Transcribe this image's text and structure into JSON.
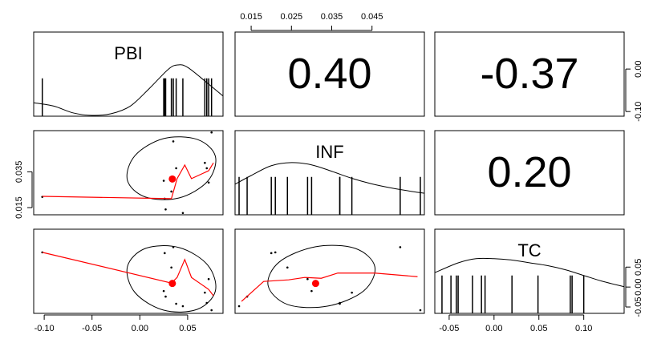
{
  "chart_data": {
    "type": "scatter-matrix",
    "variables": [
      {
        "name": "PBI",
        "lim": [
          -0.111,
          0.087
        ],
        "xticks": [
          {
            "value": -0.1,
            "label": "-0.10"
          },
          {
            "value": -0.05,
            "label": "-0.05"
          },
          {
            "value": 0,
            "label": "0.00"
          },
          {
            "value": 0.05,
            "label": "0.05"
          }
        ],
        "yticks": [
          {
            "value": -0.1,
            "label": "-0.10"
          },
          {
            "value": 0,
            "label": "0.00"
          }
        ],
        "values": [
          -0.102,
          0.035,
          0.033,
          0.025,
          0.027,
          0.038,
          0.07,
          0.075,
          0.068,
          0.026,
          0.045,
          0.072
        ],
        "mean": 0.034,
        "density": {
          "x": [
            -0.111,
            -0.09,
            -0.07,
            -0.05,
            -0.03,
            -0.01,
            0.01,
            0.03,
            0.04,
            0.05,
            0.07,
            0.087
          ],
          "y": [
            1.6,
            1.2,
            0.4,
            0.1,
            0.3,
            1.2,
            3.3,
            5.6,
            6.1,
            5.8,
            4.0,
            2.4
          ],
          "ylim": [
            0,
            10
          ]
        }
      },
      {
        "name": "INF",
        "lim": [
          0.011,
          0.058
        ],
        "xticks": [
          0.015,
          0.025,
          0.035,
          0.045
        ],
        "yticks": [
          0.015,
          0.035
        ],
        "values": [
          0.021,
          0.052,
          0.024,
          0.03,
          0.014,
          0.037,
          0.037,
          0.057,
          0.04,
          0.02,
          0.012,
          0.029
        ],
        "mean": 0.031,
        "density": {
          "x": [
            0.011,
            0.015,
            0.02,
            0.025,
            0.03,
            0.035,
            0.04,
            0.045,
            0.05,
            0.055,
            0.058
          ],
          "y": [
            10.9,
            14,
            17.5,
            18.6,
            17.8,
            15.5,
            13,
            11,
            9.5,
            8.3,
            7.7
          ],
          "ylim": [
            0,
            30
          ]
        }
      },
      {
        "name": "TC",
        "lim": [
          -0.066,
          0.145
        ],
        "xticks": [
          -0.05,
          {
            "value": 0,
            "label": "0.00"
          },
          0.05,
          {
            "value": 0.1,
            "label": "0.10"
          }
        ],
        "yticks": [
          -0.05,
          {
            "value": 0,
            "label": "0.00"
          },
          0.05
        ],
        "values": [
          0.087,
          0.1,
          0.049,
          -0.01,
          -0.024,
          -0.042,
          -0.04,
          -0.058,
          -0.014,
          0.085,
          -0.048,
          0.02
        ],
        "mean": 0.009,
        "density": {
          "x": [
            -0.066,
            -0.04,
            -0.02,
            0.0,
            0.02,
            0.04,
            0.06,
            0.08,
            0.1,
            0.12,
            0.145
          ],
          "y": [
            2.9,
            3.6,
            3.9,
            3.9,
            3.8,
            3.6,
            3.4,
            3.1,
            2.7,
            2.3,
            1.9
          ],
          "ylim": [
            0,
            6
          ]
        }
      }
    ],
    "correlations": {
      "values": [
        0.4,
        -0.37,
        0.2
      ],
      "value_labels": [
        "0.40",
        "-0.37",
        "0.20"
      ]
    },
    "smooths": [
      {
        "x": [
          -0.102,
          0.033,
          0.039,
          0.047,
          0.054,
          0.072,
          0.077
        ],
        "y": [
          0.0213,
          0.02,
          0.0312,
          0.0388,
          0.0312,
          0.0356,
          0.04
        ]
      },
      {
        "x": [
          -0.102,
          0.033,
          0.039,
          0.047,
          0.054,
          0.072,
          0.077
        ],
        "y": [
          0.087,
          0.01,
          0.024,
          0.069,
          0.024,
          -0.006,
          -0.022
        ]
      },
      {
        "x": [
          0.0126,
          0.0181,
          0.0243,
          0.0283,
          0.0324,
          0.0365,
          0.0457,
          0.0563
        ],
        "y": [
          -0.036,
          0.014,
          0.018,
          0.024,
          0.022,
          0.035,
          0.035,
          0.026
        ]
      }
    ],
    "ellipses": [
      {
        "x": [
          0.079,
          0.071,
          0.041,
          0.006,
          -0.013,
          -0.005,
          0.025,
          0.06
        ],
        "y": [
          0.0437,
          0.0298,
          0.0204,
          0.0209,
          0.0303,
          0.0441,
          0.0536,
          0.0531
        ]
      },
      {
        "x": [
          0.079,
          0.06,
          0.025,
          -0.005,
          -0.013,
          0.006,
          0.041,
          0.071
        ],
        "y": [
          -0.01,
          -0.056,
          -0.058,
          -0.014,
          0.051,
          0.097,
          0.099,
          0.055
        ]
      },
      {
        "x": [
          0.0457,
          0.0429,
          0.0339,
          0.0241,
          0.0192,
          0.022,
          0.031,
          0.0408
        ],
        "y": [
          0.051,
          -0.01,
          -0.048,
          -0.044,
          0.004,
          0.063,
          0.101,
          0.097
        ]
      }
    ],
    "point_color": "#000000",
    "fit_color": "#ff0000"
  }
}
